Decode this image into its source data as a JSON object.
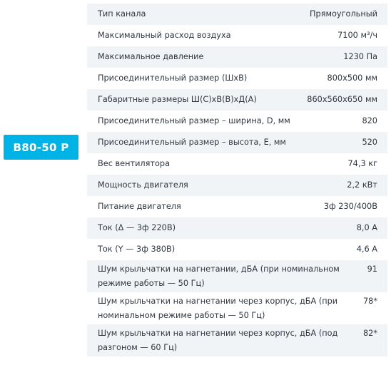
{
  "model": {
    "name": "B80-50 P"
  },
  "specs": [
    {
      "label": "Тип канала",
      "value": "Прямоугольный"
    },
    {
      "label": "Максимальный расход воздуха",
      "value": "7100 м³/ч"
    },
    {
      "label": "Максимальное давление",
      "value": "1230 Па"
    },
    {
      "label": "Присоединительный размер (ШхВ)",
      "value": "800х500 мм"
    },
    {
      "label": "Габаритные размеры Ш(С)хВ(В)хД(А)",
      "value": "860х560х650 мм"
    },
    {
      "label": "Присоединительный размер – ширина, D, мм",
      "value": "820"
    },
    {
      "label": "Присоединительный размер – высота, E, мм",
      "value": "520"
    },
    {
      "label": "Вес вентилятора",
      "value": "74,3 кг"
    },
    {
      "label": "Мощность двигателя",
      "value": "2,2 кВт"
    },
    {
      "label": "Питание двигателя",
      "value": "3ф 230/400В"
    },
    {
      "label": "Ток (Δ — 3ф 220В)",
      "value": "8,0 А"
    },
    {
      "label": "Ток (Y — 3ф 380В)",
      "value": "4,6 А"
    },
    {
      "label": "Шум крыльчатки на нагнетании, дБА (при номинальном режиме работы — 50 Гц)",
      "value": "91"
    },
    {
      "label": "Шум крыльчатки на нагнетании через корпус, дБА (при номинальном режиме работы — 50 Гц)",
      "value": "78*"
    },
    {
      "label": "Шум крыльчатки на нагнетании через корпус, дБА (под разгоном — 60 Гц)",
      "value": "82*"
    }
  ]
}
